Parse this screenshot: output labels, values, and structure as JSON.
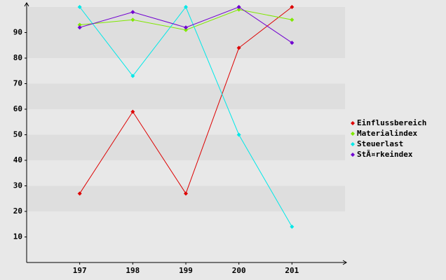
{
  "chart_data": {
    "type": "line",
    "categories": [
      "197",
      "198",
      "199",
      "200",
      "201"
    ],
    "series": [
      {
        "name": "Einflussbereich",
        "color": "#dd0000",
        "values": [
          27,
          59,
          27,
          84,
          100
        ]
      },
      {
        "name": "Materialindex",
        "color": "#80e800",
        "values": [
          93,
          95,
          91,
          99,
          95
        ]
      },
      {
        "name": "Steuerlast",
        "color": "#00e8e8",
        "values": [
          100,
          73,
          100,
          50,
          14
        ]
      },
      {
        "name": "StÃ¤rkeindex",
        "color": "#7000d0",
        "values": [
          92,
          98,
          92,
          100,
          86
        ]
      }
    ],
    "ylim": [
      0,
      100
    ],
    "yticks": [
      10,
      20,
      30,
      40,
      50,
      60,
      70,
      80,
      90
    ],
    "grid": true,
    "legend": "right"
  }
}
